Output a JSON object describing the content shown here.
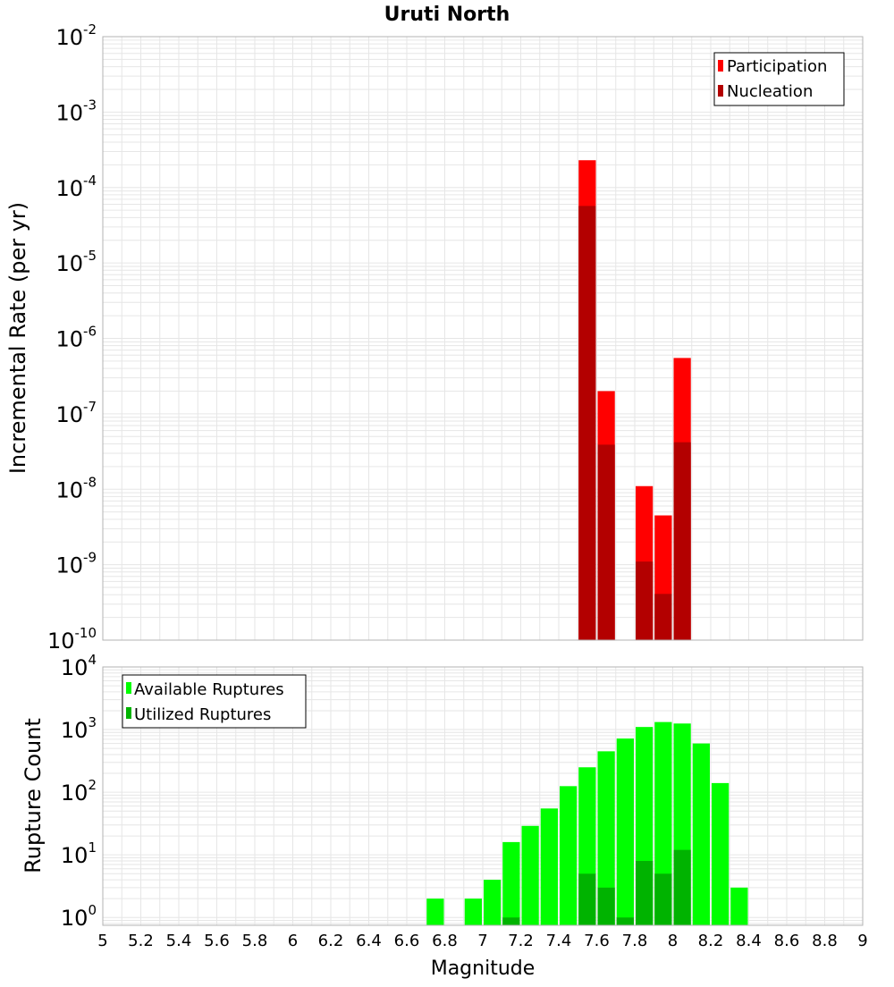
{
  "title": "Uruti North",
  "colors": {
    "participation": "#ff0000",
    "nucleation": "#b30000",
    "available": "#00ff00",
    "utilized": "#00b300",
    "grid": "#e6e6e6",
    "frame": "#b3b3b3"
  },
  "xlabel": "Magnitude",
  "x_ticks": [
    "5",
    "5.2",
    "5.4",
    "5.6",
    "5.8",
    "6",
    "6.2",
    "6.4",
    "6.6",
    "6.8",
    "7",
    "7.2",
    "7.4",
    "7.6",
    "7.8",
    "8",
    "8.2",
    "8.4",
    "8.6",
    "8.8",
    "9"
  ],
  "chart_data": [
    {
      "type": "bar",
      "ylabel": "Incremental Rate (per yr)",
      "y_scale": "log",
      "xlim": [
        5,
        9
      ],
      "ylim": [
        1e-10,
        0.01
      ],
      "y_tick_exponents": [
        "-10",
        "-9",
        "-8",
        "-7",
        "-6",
        "-5",
        "-4",
        "-3",
        "-2"
      ],
      "grid": true,
      "legend_position": "top-right",
      "bin_width": 0.1,
      "series": [
        {
          "name": "Participation",
          "x": [
            7.55,
            7.65,
            7.85,
            7.95,
            8.05
          ],
          "values": [
            0.00023,
            2e-07,
            1.1e-08,
            4.5e-09,
            5.5e-07
          ]
        },
        {
          "name": "Nucleation",
          "x": [
            7.55,
            7.65,
            7.85,
            7.95,
            8.05
          ],
          "values": [
            5.7e-05,
            3.9e-08,
            1.1e-09,
            4.1e-10,
            4.2e-08
          ]
        }
      ]
    },
    {
      "type": "bar",
      "ylabel": "Rupture Count",
      "y_scale": "log",
      "xlim": [
        5,
        9
      ],
      "ylim": [
        0.75,
        10000
      ],
      "y_tick_exponents": [
        "0",
        "1",
        "2",
        "3",
        "4"
      ],
      "grid": true,
      "legend_position": "top-left",
      "bin_width": 0.1,
      "series": [
        {
          "name": "Available Ruptures",
          "x": [
            6.75,
            6.95,
            7.05,
            7.15,
            7.25,
            7.35,
            7.45,
            7.55,
            7.65,
            7.75,
            7.85,
            7.95,
            8.05,
            8.15,
            8.25,
            8.35
          ],
          "values": [
            2,
            2,
            4,
            16,
            29,
            55,
            125,
            250,
            450,
            720,
            1100,
            1320,
            1250,
            600,
            140,
            3
          ]
        },
        {
          "name": "Utilized Ruptures",
          "x": [
            7.15,
            7.55,
            7.65,
            7.75,
            7.85,
            7.95,
            8.05
          ],
          "values": [
            1,
            5,
            3,
            1,
            8,
            5,
            12
          ]
        }
      ]
    }
  ]
}
